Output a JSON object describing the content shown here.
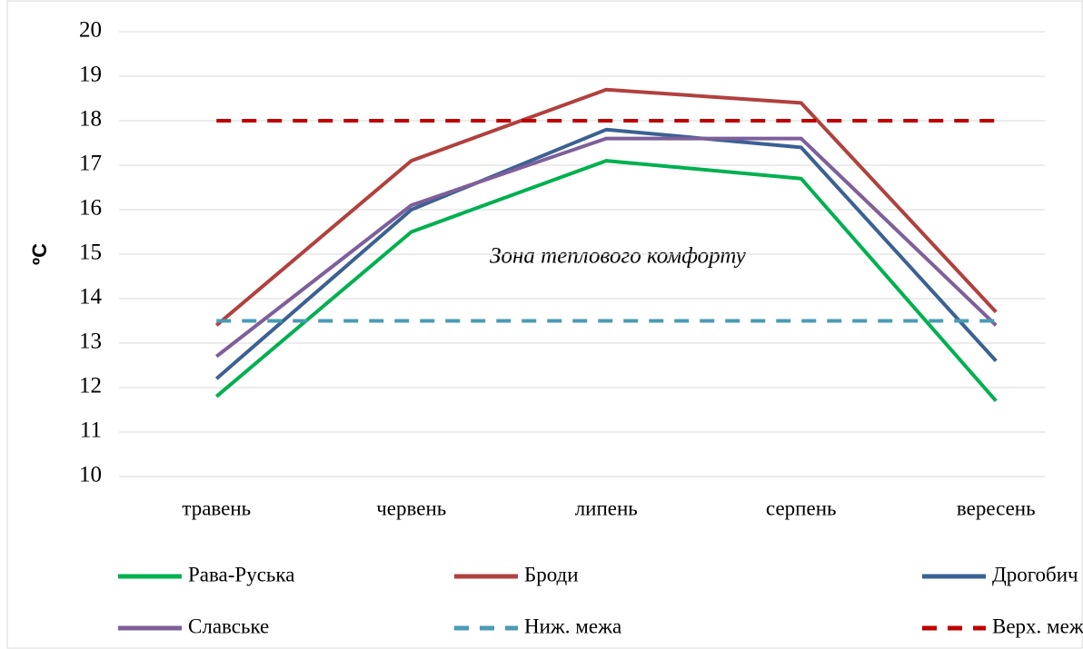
{
  "chart_data": {
    "type": "line",
    "y_label": "ºC",
    "annotation": "Зона теплового комфорту",
    "categories": [
      "травень",
      "червень",
      "липень",
      "серпень",
      "вересень"
    ],
    "series": [
      {
        "name": "Рава-Руська",
        "color": "#00b050",
        "values": [
          11.8,
          15.5,
          17.1,
          16.7,
          11.7
        ]
      },
      {
        "name": "Броди",
        "color": "#b0413e",
        "values": [
          13.4,
          17.1,
          18.7,
          18.4,
          13.7
        ]
      },
      {
        "name": "Дрогобич",
        "color": "#3b6193",
        "values": [
          12.2,
          16.0,
          17.8,
          17.4,
          12.6
        ]
      },
      {
        "name": "Славське",
        "color": "#7e5f9a",
        "values": [
          12.7,
          16.1,
          17.6,
          17.6,
          13.4
        ]
      },
      {
        "name": "Ниж. межа",
        "color": "#4a9bb5",
        "dash": true,
        "values": [
          13.5,
          13.5,
          13.5,
          13.5,
          13.5
        ]
      },
      {
        "name": "Верх. межа",
        "color": "#c00000",
        "dash": true,
        "values": [
          18,
          18,
          18,
          18,
          18
        ]
      }
    ],
    "ylim": [
      10,
      20
    ],
    "yticks": [
      10,
      11,
      12,
      13,
      14,
      15,
      16,
      17,
      18,
      19,
      20
    ],
    "grid": true
  }
}
